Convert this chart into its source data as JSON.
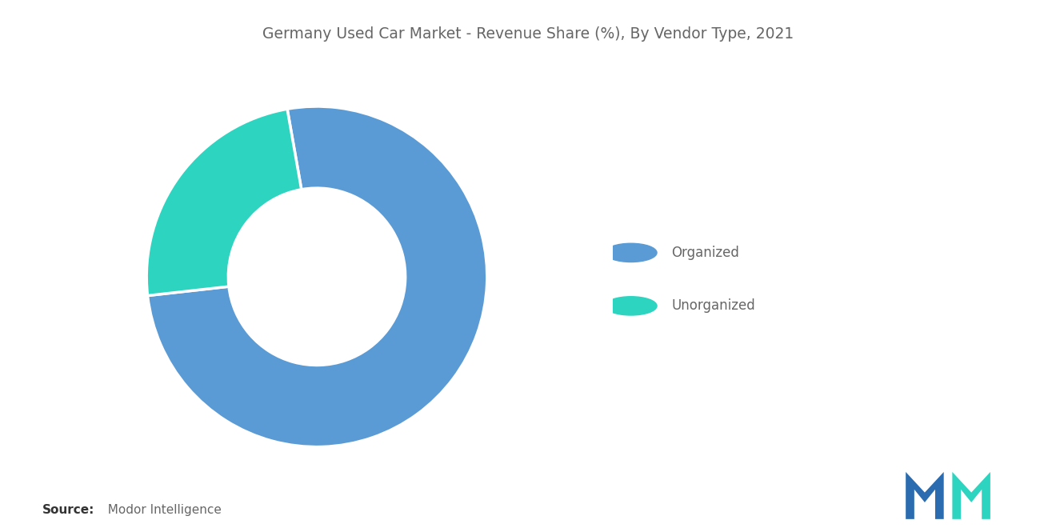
{
  "title": "Germany Used Car Market - Revenue Share (%), By Vendor Type, 2021",
  "slices": [
    76,
    24
  ],
  "labels": [
    "Organized",
    "Unorganized"
  ],
  "colors": [
    "#5B9BD5",
    "#2DD4C0"
  ],
  "wedge_edge_color": "white",
  "background_color": "#ffffff",
  "title_color": "#666666",
  "title_fontsize": 13.5,
  "legend_fontsize": 12,
  "source_bold": "Source:",
  "source_normal": "  Modor Intelligence",
  "source_fontsize": 11,
  "donut_hole": 0.5,
  "start_angle": 100,
  "logo_left_color": "#2B6CB0",
  "logo_right_color": "#2DD4C0"
}
